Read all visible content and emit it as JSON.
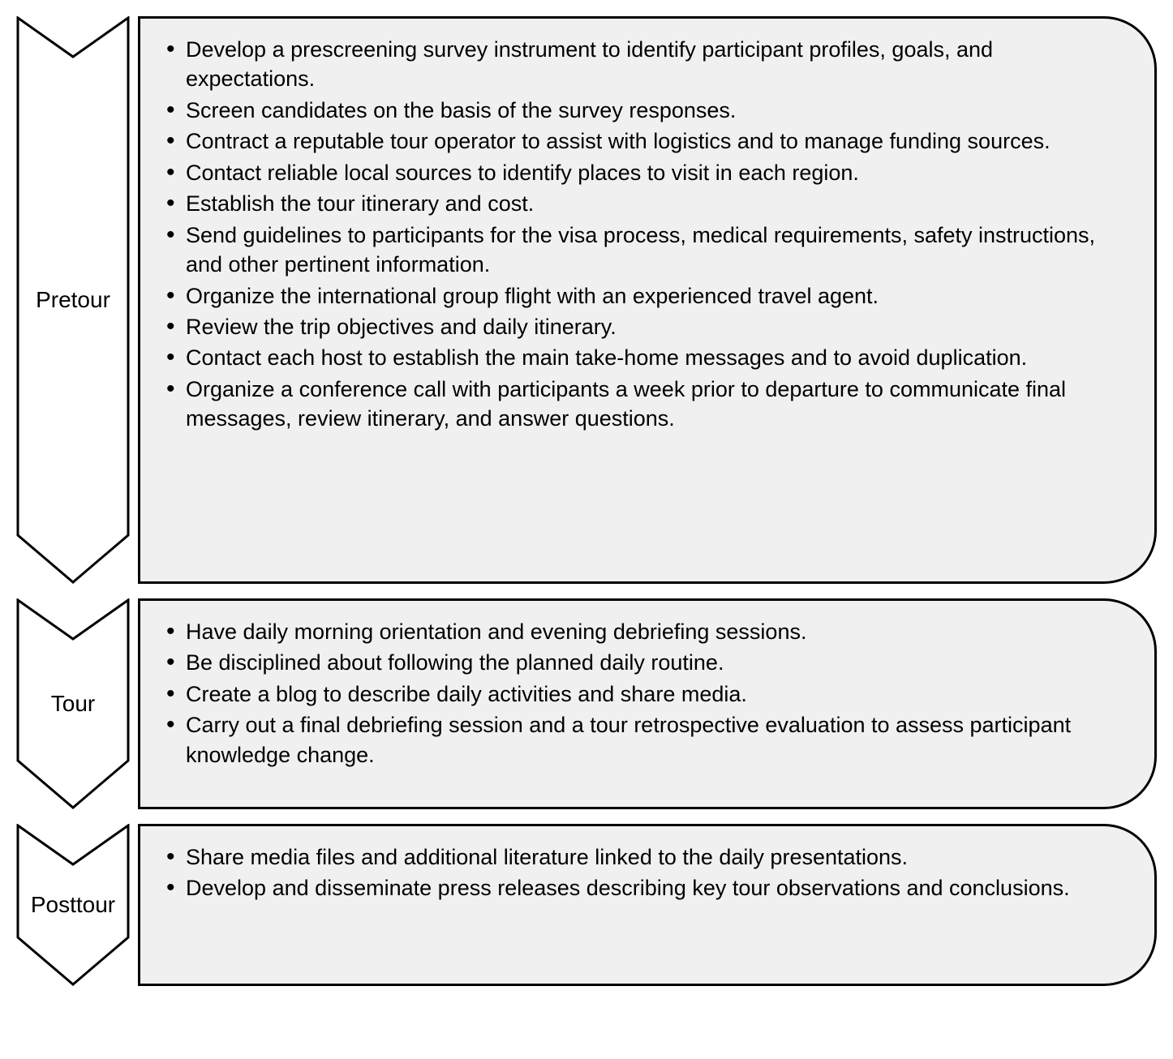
{
  "diagram": {
    "type": "flowchart",
    "background_color": "#ffffff",
    "box_fill": "#f0f0f0",
    "box_border_color": "#000000",
    "box_border_width": 3,
    "box_corner_radius_right": 65,
    "chevron_fill": "#ffffff",
    "chevron_border_color": "#000000",
    "chevron_border_width": 3,
    "font_family": "Arial",
    "text_color": "#000000",
    "label_fontsize": 28,
    "body_fontsize": 27,
    "phases": [
      {
        "label": "Pretour",
        "items": [
          "Develop a prescreening survey instrument to identify participant profiles, goals, and expectations.",
          "Screen candidates on the basis of the survey responses.",
          "Contract a reputable tour operator to assist with logistics and to manage funding sources.",
          "Contact reliable local sources to identify places to visit in each region.",
          "Establish the tour itinerary and cost.",
          "Send guidelines to participants for the visa process, medical requirements, safety instructions, and other pertinent information.",
          "Organize the international group flight with an experienced travel agent.",
          "Review the trip objectives and daily itinerary.",
          "Contact each host to establish the main take-home messages and to avoid duplication.",
          "Organize a conference call with participants a week prior to departure to communicate final messages, review itinerary, and answer questions."
        ]
      },
      {
        "label": "Tour",
        "items": [
          "Have daily morning orientation and evening debriefing sessions.",
          "Be disciplined about following the planned daily routine.",
          "Create a blog to describe daily activities and share media.",
          "Carry out a final debriefing session and a tour retrospective evaluation to assess participant knowledge change."
        ]
      },
      {
        "label": "Posttour",
        "items": [
          "Share media files and additional literature linked to the daily presentations.",
          "Develop and disseminate press releases describing key tour observations and conclusions."
        ]
      }
    ]
  }
}
